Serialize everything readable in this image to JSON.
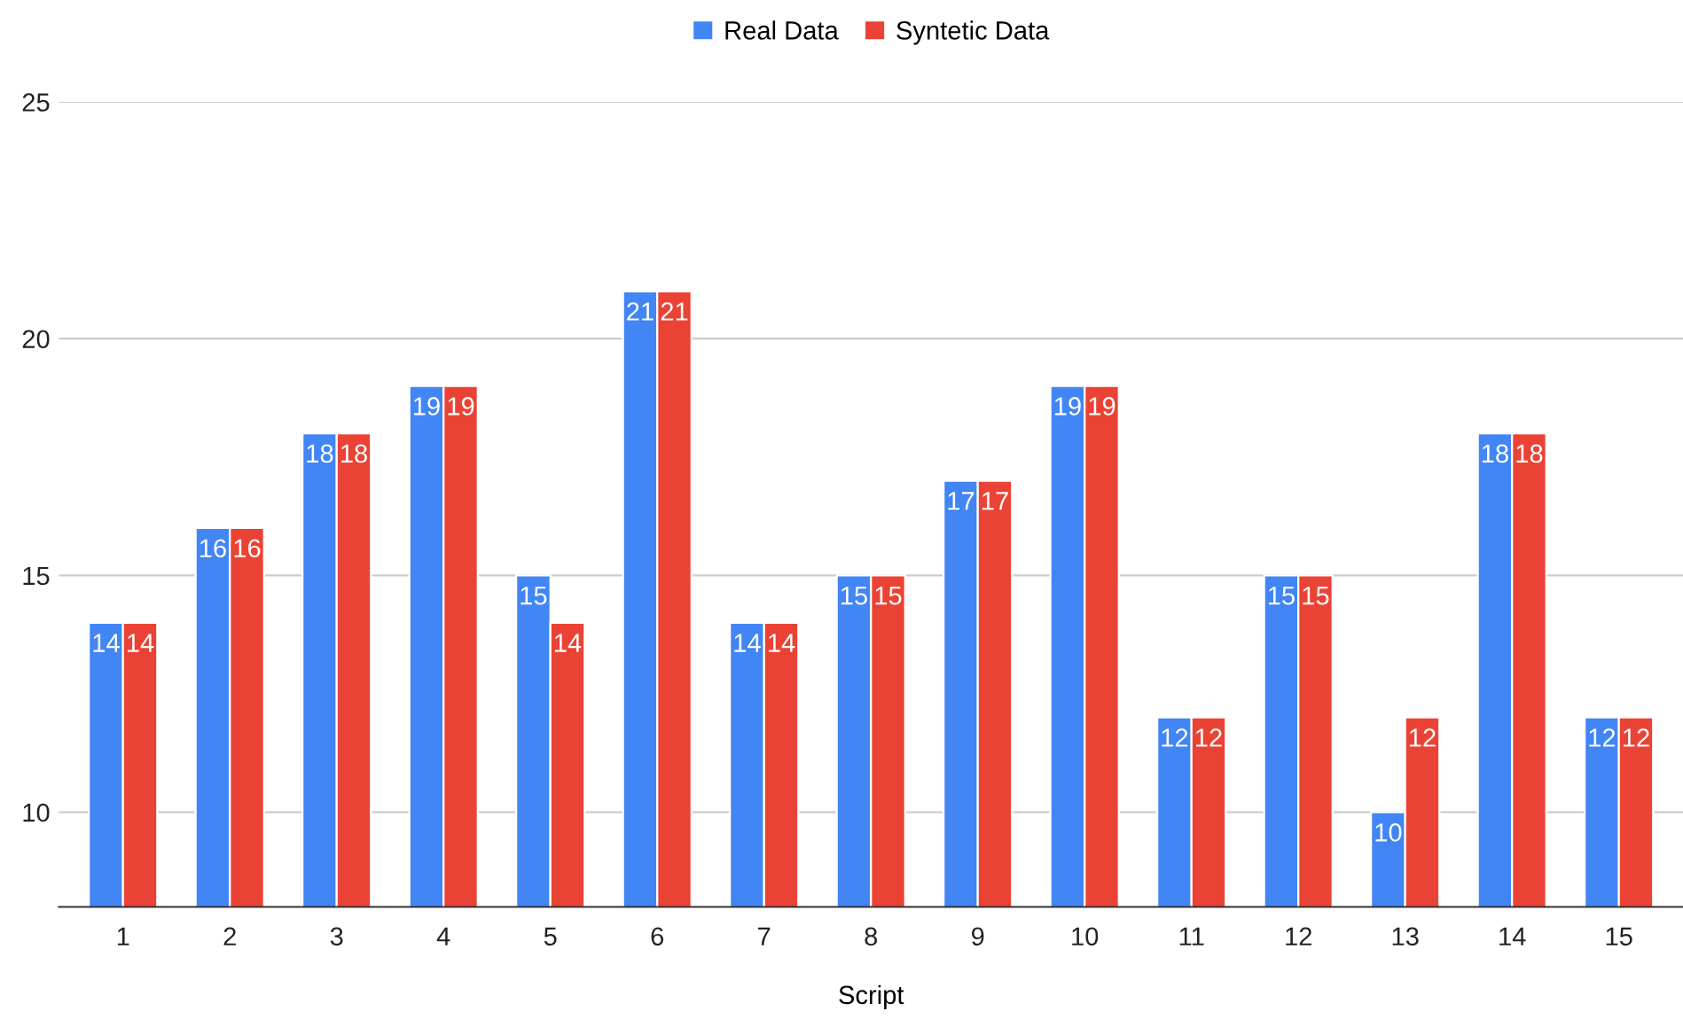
{
  "chart_data": {
    "type": "bar",
    "xlabel": "Script",
    "categories": [
      "1",
      "2",
      "3",
      "4",
      "5",
      "6",
      "7",
      "8",
      "9",
      "10",
      "11",
      "12",
      "13",
      "14",
      "15"
    ],
    "series": [
      {
        "name": "Real Data",
        "color": "#4285f4",
        "values": [
          14,
          16,
          18,
          19,
          15,
          21,
          14,
          15,
          17,
          19,
          12,
          15,
          10,
          18,
          12
        ]
      },
      {
        "name": "Syntetic Data",
        "color": "#ea4335",
        "values": [
          14,
          16,
          18,
          19,
          14,
          21,
          14,
          15,
          17,
          19,
          12,
          15,
          12,
          18,
          12
        ]
      }
    ],
    "ylim": [
      8,
      25
    ],
    "yticks": [
      10,
      15,
      20,
      25
    ],
    "grid": "y",
    "legend": "top",
    "data_labels": true
  }
}
